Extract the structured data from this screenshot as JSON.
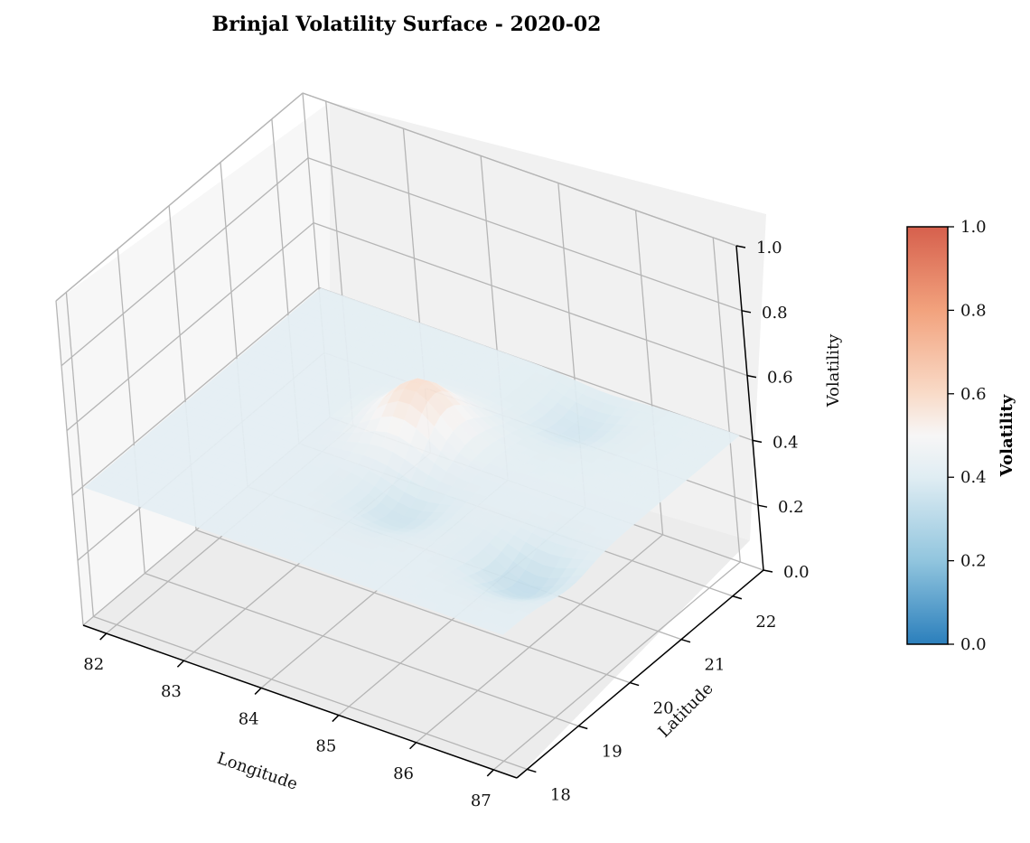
{
  "chart_data": {
    "type": "surface3d",
    "title": "Brinjal Volatility Surface - 2020-02",
    "x_axis": {
      "label": "Longitude",
      "ticks": [
        82,
        83,
        84,
        85,
        86,
        87
      ],
      "range": [
        81.7,
        87.3
      ]
    },
    "y_axis": {
      "label": "Latitude",
      "ticks": [
        18,
        19,
        20,
        21,
        22
      ],
      "range": [
        17.8,
        22.6
      ]
    },
    "z_axis": {
      "label": "Volatility",
      "ticks": [
        "0.0",
        "0.2",
        "0.4",
        "0.6",
        "0.8",
        "1.0"
      ],
      "range": [
        0,
        1
      ]
    },
    "surface": {
      "baseline_volatility": 0.42,
      "features": [
        {
          "lon": 84.3,
          "lat": 20.7,
          "volatility": 0.58,
          "kind": "peak"
        },
        {
          "lon": 84.8,
          "lat": 19.5,
          "volatility": 0.36,
          "kind": "dip"
        },
        {
          "lon": 86.6,
          "lat": 19.2,
          "volatility": 0.33,
          "kind": "dip"
        },
        {
          "lon": 85.5,
          "lat": 21.9,
          "volatility": 0.37,
          "kind": "dip"
        }
      ]
    },
    "colorbar": {
      "label": "Volatility",
      "ticks": [
        "0.0",
        "0.2",
        "0.4",
        "0.6",
        "0.8",
        "1.0"
      ],
      "range": [
        0,
        1
      ],
      "colormap": [
        "#2c7bb6",
        "#abd9e9",
        "#f7f7f7",
        "#fdae61",
        "#d7191c"
      ],
      "colormap_name": "RdBu_r"
    },
    "grid": true
  }
}
